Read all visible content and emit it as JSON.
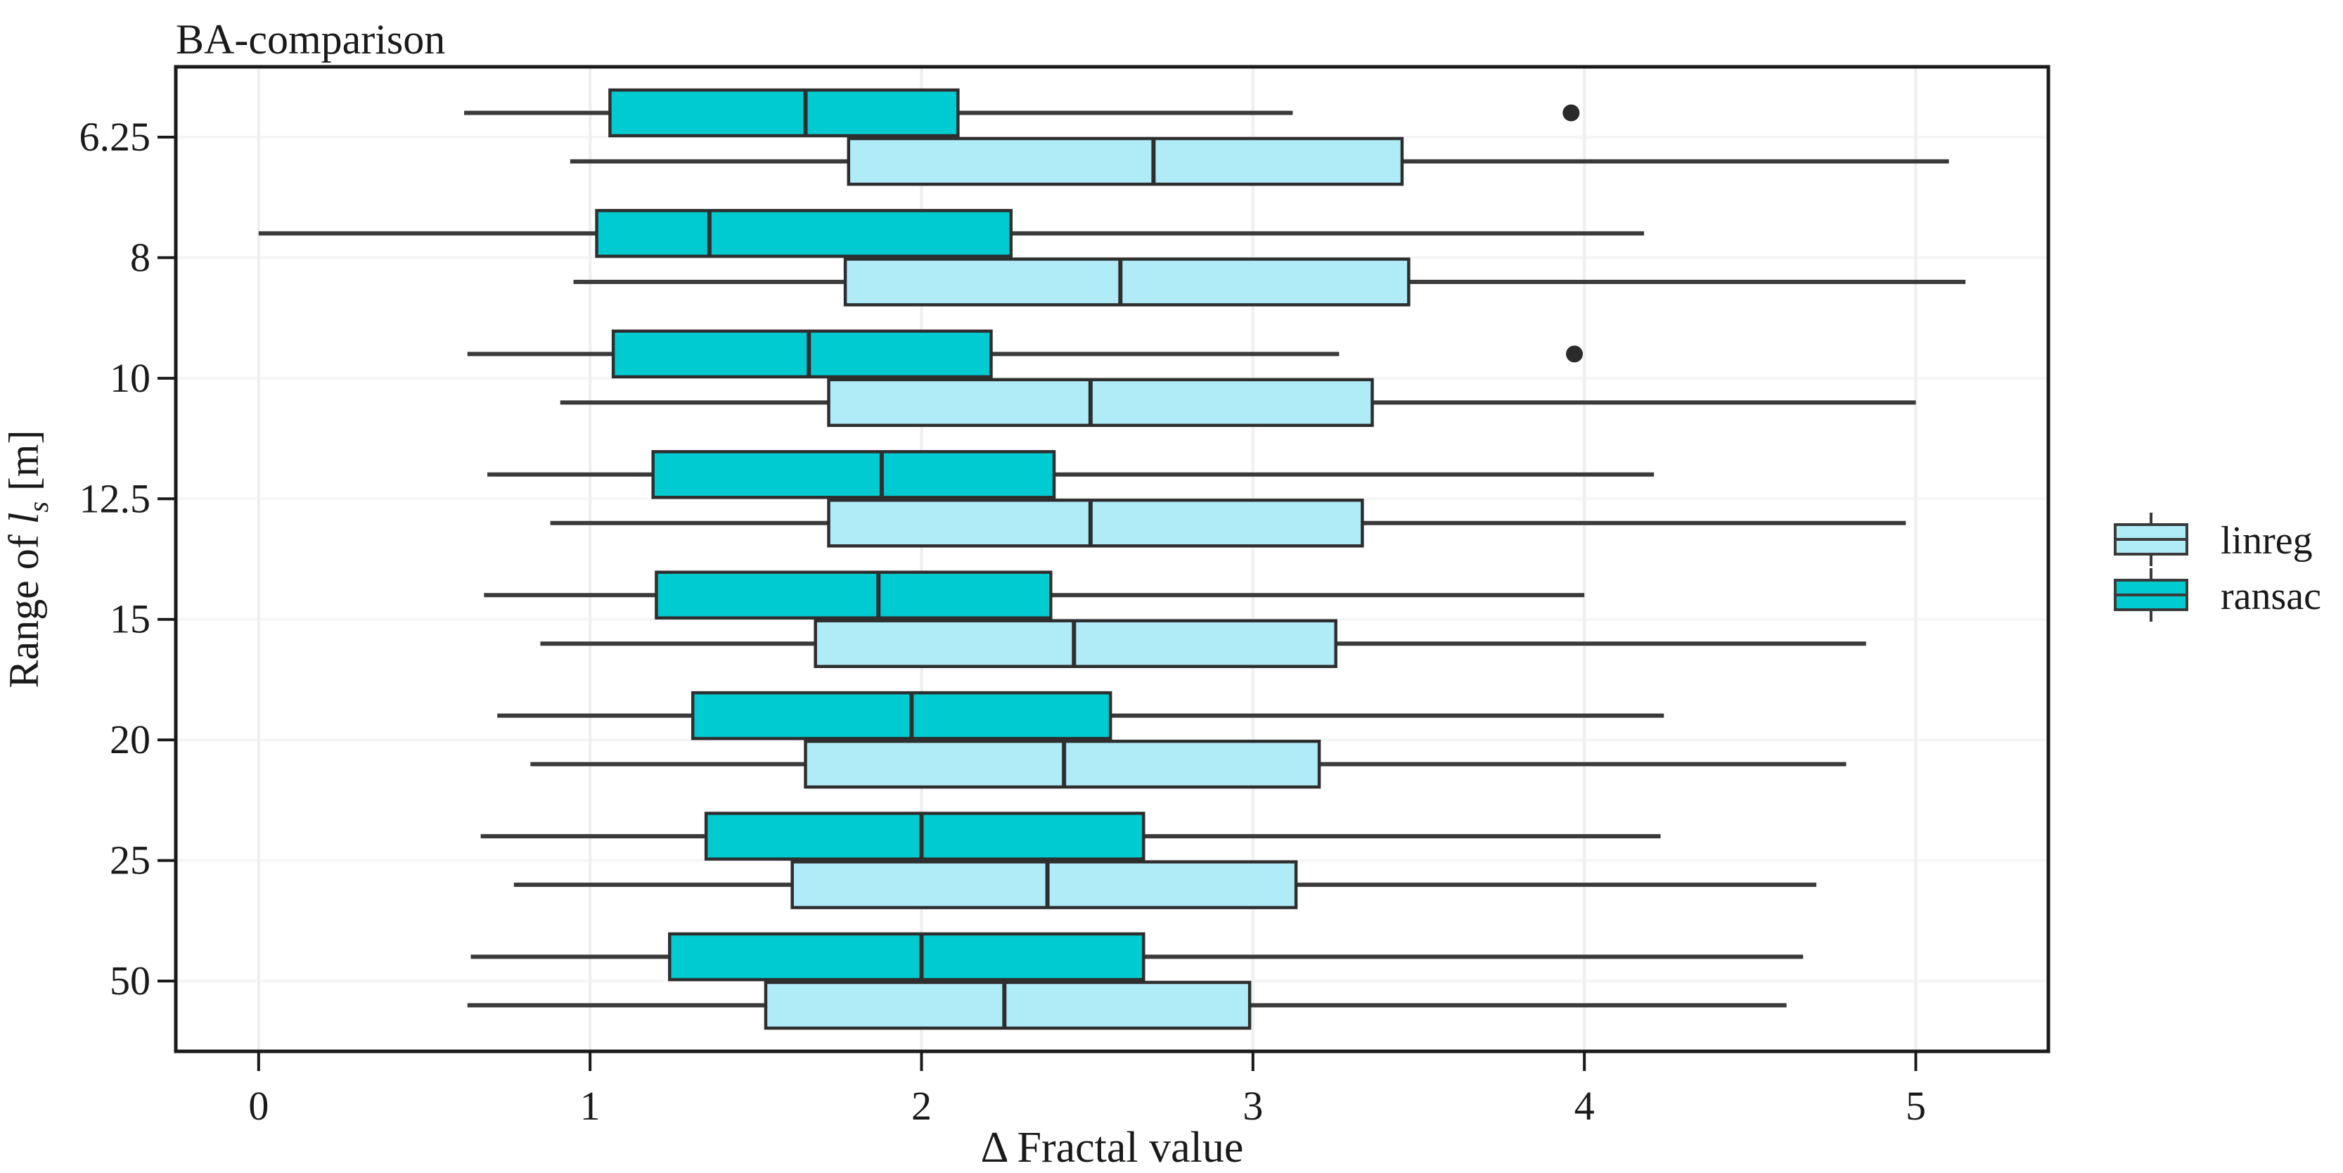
{
  "title": "BA-comparison",
  "chart_data": {
    "type": "boxplot",
    "orientation": "horizontal",
    "title": "BA-comparison",
    "xlabel": "Δ Fractal value",
    "ylabel": {
      "text": "Range of l_s [m]",
      "prefix": "Range of ",
      "var": "l",
      "sub": "s",
      "suffix": " [m]"
    },
    "categories": [
      "6.25",
      "8",
      "10",
      "12.5",
      "15",
      "20",
      "25",
      "50"
    ],
    "x_ticks": [
      "0",
      "1",
      "2",
      "3",
      "4",
      "5"
    ],
    "xlim": [
      -0.25,
      5.4
    ],
    "grid": true,
    "legend": {
      "position": "right-center",
      "entries": [
        {
          "label": "linreg",
          "color": "#AFECF8"
        },
        {
          "label": "ransac",
          "color": "#00CBD1"
        }
      ]
    },
    "series": [
      {
        "name": "linreg",
        "color": "#AFECF8",
        "pair_position": "below",
        "boxes": [
          {
            "category": "6.25",
            "whisker_low": 0.94,
            "q1": 1.78,
            "median": 2.7,
            "q3": 3.45,
            "whisker_high": 5.1,
            "outliers": []
          },
          {
            "category": "8",
            "whisker_low": 0.95,
            "q1": 1.77,
            "median": 2.6,
            "q3": 3.47,
            "whisker_high": 5.15,
            "outliers": []
          },
          {
            "category": "10",
            "whisker_low": 0.91,
            "q1": 1.72,
            "median": 2.51,
            "q3": 3.36,
            "whisker_high": 5.0,
            "outliers": []
          },
          {
            "category": "12.5",
            "whisker_low": 0.88,
            "q1": 1.72,
            "median": 2.51,
            "q3": 3.33,
            "whisker_high": 4.97,
            "outliers": []
          },
          {
            "category": "15",
            "whisker_low": 0.85,
            "q1": 1.68,
            "median": 2.46,
            "q3": 3.25,
            "whisker_high": 4.85,
            "outliers": []
          },
          {
            "category": "20",
            "whisker_low": 0.82,
            "q1": 1.65,
            "median": 2.43,
            "q3": 3.2,
            "whisker_high": 4.79,
            "outliers": []
          },
          {
            "category": "25",
            "whisker_low": 0.77,
            "q1": 1.61,
            "median": 2.38,
            "q3": 3.13,
            "whisker_high": 4.7,
            "outliers": []
          },
          {
            "category": "50",
            "whisker_low": 0.63,
            "q1": 1.53,
            "median": 2.25,
            "q3": 2.99,
            "whisker_high": 4.61,
            "outliers": []
          }
        ]
      },
      {
        "name": "ransac",
        "color": "#00CBD1",
        "pair_position": "above",
        "boxes": [
          {
            "category": "6.25",
            "whisker_low": 0.62,
            "q1": 1.06,
            "median": 1.65,
            "q3": 2.11,
            "whisker_high": 3.12,
            "outliers": [
              3.96
            ]
          },
          {
            "category": "8",
            "whisker_low": 0.0,
            "q1": 1.02,
            "median": 1.36,
            "q3": 2.27,
            "whisker_high": 4.18,
            "outliers": []
          },
          {
            "category": "10",
            "whisker_low": 0.63,
            "q1": 1.07,
            "median": 1.66,
            "q3": 2.21,
            "whisker_high": 3.26,
            "outliers": [
              3.97
            ]
          },
          {
            "category": "12.5",
            "whisker_low": 0.69,
            "q1": 1.19,
            "median": 1.88,
            "q3": 2.4,
            "whisker_high": 4.21,
            "outliers": []
          },
          {
            "category": "15",
            "whisker_low": 0.68,
            "q1": 1.2,
            "median": 1.87,
            "q3": 2.39,
            "whisker_high": 4.0,
            "outliers": []
          },
          {
            "category": "20",
            "whisker_low": 0.72,
            "q1": 1.31,
            "median": 1.97,
            "q3": 2.57,
            "whisker_high": 4.24,
            "outliers": []
          },
          {
            "category": "25",
            "whisker_low": 0.67,
            "q1": 1.35,
            "median": 2.0,
            "q3": 2.67,
            "whisker_high": 4.23,
            "outliers": []
          },
          {
            "category": "50",
            "whisker_low": 0.64,
            "q1": 1.24,
            "median": 2.0,
            "q3": 2.67,
            "whisker_high": 4.66,
            "outliers": []
          }
        ]
      }
    ],
    "colors": {
      "background": "#FFFFFF",
      "panel_border": "#1A1A1A",
      "box_stroke": "#2E2E2E",
      "whisker": "#3A3A3A",
      "outlier": "#2B2B2B",
      "grid_vertical": "#EFEFEF",
      "grid_horizontal": "#F5F5F5",
      "text": "#1A1A1A"
    }
  }
}
